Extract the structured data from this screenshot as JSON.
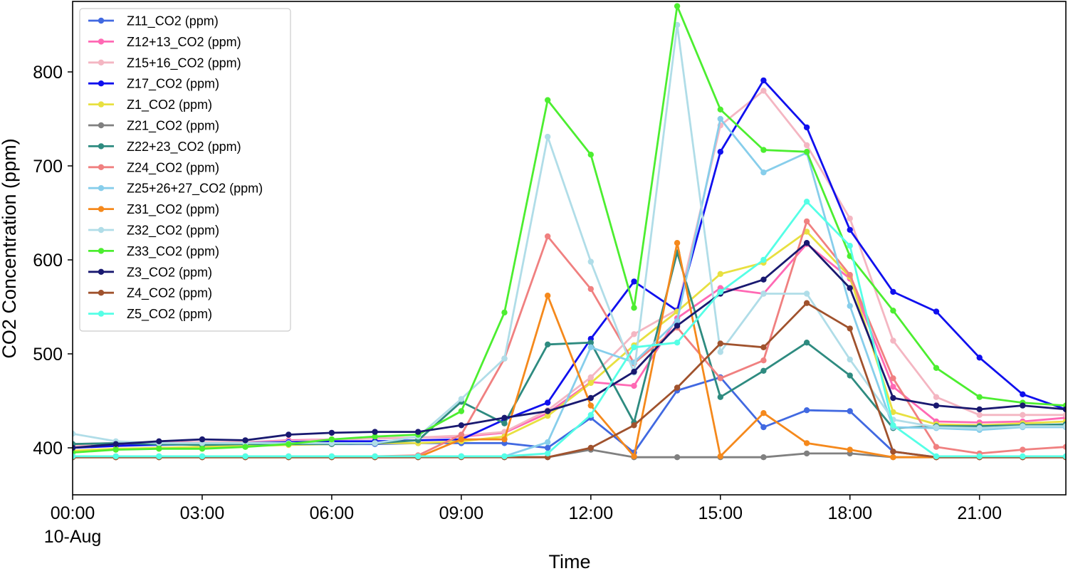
{
  "chart_data": {
    "type": "line",
    "title": "",
    "xlabel": "Time",
    "ylabel": "CO2 Concentration (ppm)",
    "x": [
      0,
      1,
      2,
      3,
      4,
      5,
      6,
      7,
      8,
      9,
      10,
      11,
      12,
      13,
      14,
      15,
      16,
      17,
      18,
      19,
      20,
      21,
      22,
      23
    ],
    "x_unit": "hours since 00:00 10-Aug",
    "xlim": [
      0,
      23
    ],
    "ylim": [
      350,
      875
    ],
    "xticks": [
      {
        "value": 0,
        "label": "00:00",
        "sublabel": "10-Aug"
      },
      {
        "value": 3,
        "label": "03:00"
      },
      {
        "value": 6,
        "label": "06:00"
      },
      {
        "value": 9,
        "label": "09:00"
      },
      {
        "value": 12,
        "label": "12:00"
      },
      {
        "value": 15,
        "label": "15:00"
      },
      {
        "value": 18,
        "label": "18:00"
      },
      {
        "value": 21,
        "label": "21:00"
      }
    ],
    "yticks": [
      400,
      500,
      600,
      700,
      800
    ],
    "grid": false,
    "legend_position": "top-left",
    "series": [
      {
        "name": "Z11_CO2 (ppm)",
        "color": "#4169e1",
        "values": [
          402,
          402,
          403,
          404,
          404,
          404,
          404,
          404,
          405,
          405,
          405,
          400,
          432,
          395,
          461,
          475,
          422,
          440,
          439,
          396,
          390,
          390,
          390,
          390
        ]
      },
      {
        "name": "Z12+13_CO2 (ppm)",
        "color": "#ff69b4",
        "values": [
          404,
          405,
          406,
          406,
          406,
          408,
          409,
          410,
          411,
          412,
          416,
          437,
          470,
          466,
          538,
          570,
          564,
          617,
          580,
          465,
          428,
          427,
          428,
          432
        ]
      },
      {
        "name": "Z15+16_CO2 (ppm)",
        "color": "#f4b6c2",
        "values": [
          402,
          404,
          405,
          406,
          406,
          407,
          409,
          410,
          411,
          413,
          417,
          440,
          475,
          521,
          547,
          743,
          780,
          722,
          644,
          514,
          454,
          435,
          435,
          435
        ]
      },
      {
        "name": "Z17_CO2 (ppm)",
        "color": "#1010ee",
        "values": [
          400,
          402,
          404,
          405,
          405,
          406,
          407,
          407,
          408,
          409,
          430,
          448,
          516,
          577,
          546,
          715,
          791,
          741,
          632,
          566,
          545,
          496,
          457,
          441
        ]
      },
      {
        "name": "Z1_CO2 (ppm)",
        "color": "#e8e040",
        "values": [
          397,
          399,
          400,
          401,
          402,
          403,
          404,
          405,
          405,
          407,
          412,
          434,
          469,
          509,
          545,
          585,
          597,
          630,
          582,
          438,
          425,
          424,
          426,
          428
        ]
      },
      {
        "name": "Z21_CO2 (ppm)",
        "color": "#808080",
        "values": [
          390,
          390,
          390,
          390,
          390,
          390,
          390,
          390,
          390,
          391,
          390,
          390,
          398,
          390,
          390,
          390,
          390,
          394,
          394,
          390,
          390,
          390,
          390,
          390
        ]
      },
      {
        "name": "Z22+23_CO2 (ppm)",
        "color": "#2e8b80",
        "values": [
          404,
          405,
          404,
          403,
          404,
          404,
          404,
          405,
          408,
          449,
          426,
          510,
          512,
          427,
          608,
          454,
          482,
          512,
          477,
          421,
          423,
          423,
          424,
          425
        ]
      },
      {
        "name": "Z24_CO2 (ppm)",
        "color": "#f08080",
        "values": [
          391,
          391,
          391,
          391,
          391,
          391,
          391,
          391,
          392,
          414,
          495,
          625,
          569,
          490,
          528,
          474,
          493,
          641,
          584,
          474,
          401,
          394,
          398,
          401
        ]
      },
      {
        "name": "Z25+26+27_CO2 (ppm)",
        "color": "#87ceeb",
        "values": [
          390,
          390,
          390,
          390,
          390,
          390,
          390,
          390,
          390,
          391,
          391,
          406,
          507,
          491,
          535,
          750,
          693,
          714,
          551,
          422,
          421,
          419,
          422,
          422
        ]
      },
      {
        "name": "Z31_CO2 (ppm)",
        "color": "#f5891c",
        "values": [
          390,
          390,
          390,
          390,
          390,
          390,
          390,
          390,
          390,
          409,
          409,
          562,
          445,
          391,
          618,
          391,
          437,
          405,
          398,
          390,
          390,
          390,
          390,
          390
        ]
      },
      {
        "name": "Z32_CO2 (ppm)",
        "color": "#b0dde8",
        "values": [
          415,
          407,
          405,
          405,
          405,
          405,
          405,
          405,
          412,
          452,
          495,
          731,
          598,
          480,
          850,
          502,
          564,
          564,
          494,
          430,
          422,
          421,
          423,
          423
        ]
      },
      {
        "name": "Z33_CO2 (ppm)",
        "color": "#4cee30",
        "values": [
          395,
          398,
          399,
          399,
          401,
          404,
          409,
          412,
          414,
          439,
          544,
          770,
          712,
          549,
          870,
          760,
          717,
          715,
          604,
          546,
          485,
          454,
          448,
          445
        ]
      },
      {
        "name": "Z3_CO2 (ppm)",
        "color": "#191970",
        "values": [
          400,
          404,
          407,
          409,
          408,
          414,
          416,
          417,
          417,
          424,
          432,
          439,
          453,
          481,
          530,
          564,
          579,
          618,
          570,
          453,
          445,
          441,
          445,
          441
        ]
      },
      {
        "name": "Z4_CO2 (ppm)",
        "color": "#a0522d",
        "values": [
          390,
          390,
          390,
          390,
          390,
          390,
          390,
          390,
          390,
          390,
          390,
          390,
          400,
          424,
          464,
          511,
          507,
          554,
          527,
          396,
          390,
          390,
          390,
          390
        ]
      },
      {
        "name": "Z5_CO2 (ppm)",
        "color": "#55ffe6",
        "values": [
          391,
          391,
          391,
          391,
          391,
          391,
          391,
          391,
          391,
          391,
          391,
          394,
          435,
          507,
          512,
          566,
          600,
          662,
          615,
          424,
          391,
          391,
          391,
          391
        ]
      }
    ]
  }
}
